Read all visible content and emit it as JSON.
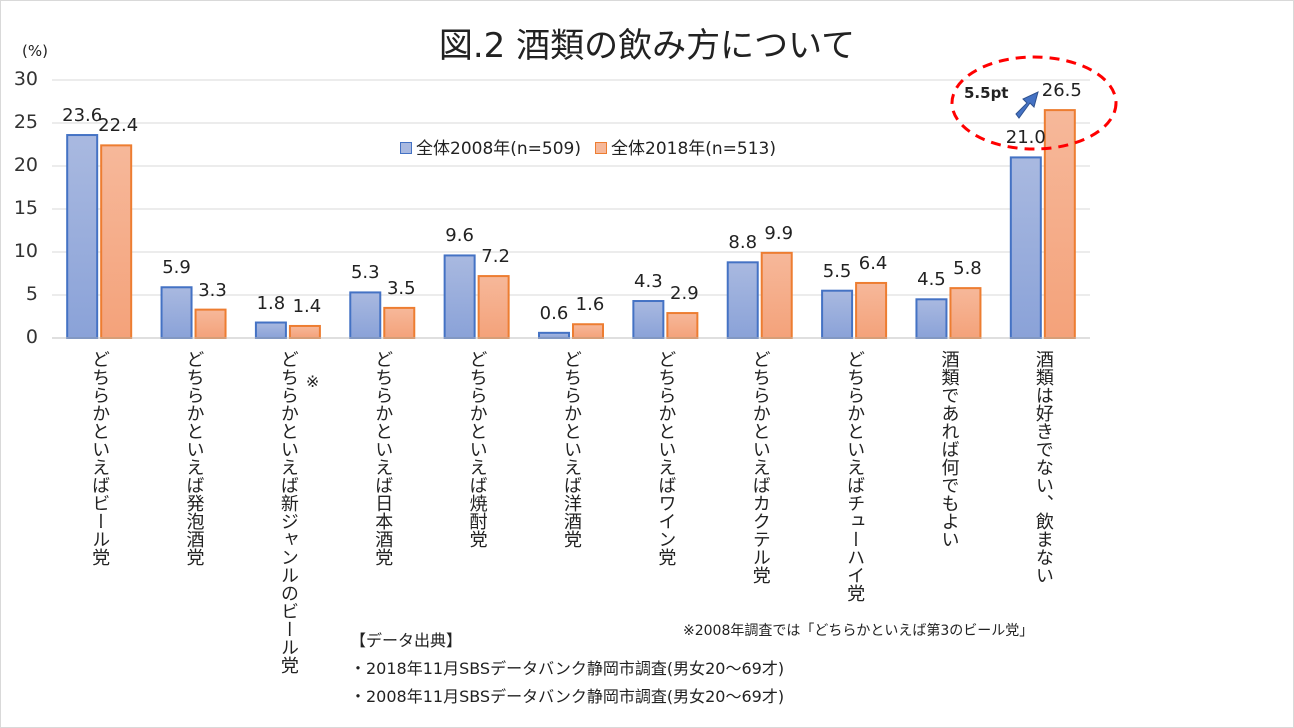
{
  "chart_data": {
    "type": "bar",
    "title": "図.2  酒類の飲み方について",
    "ylabel": "(%)",
    "ylim": [
      0,
      30
    ],
    "yticks": [
      "0",
      "5",
      "10",
      "15",
      "20",
      "25",
      "30"
    ],
    "grid": true,
    "legend_position": "top-center",
    "categories": [
      "どちらかといえばビール党",
      "どちらかといえば発泡酒党",
      "どちらかといえば新ジャンルのビール党",
      "どちらかといえば日本酒党",
      "どちらかといえば焼酎党",
      "どちらかといえば洋酒党",
      "どちらかといえばワイン党",
      "どちらかといえばカクテル党",
      "どちらかといえばチューハイ党",
      "酒類であれば何でもよい",
      "酒類は好きでない、飲まない"
    ],
    "category_marks": [
      "",
      "",
      "※",
      "",
      "",
      "",
      "",
      "",
      "",
      "",
      ""
    ],
    "series": [
      {
        "name": "全体2008年(n=509)",
        "values": [
          23.6,
          5.9,
          1.8,
          5.3,
          9.6,
          0.6,
          4.3,
          8.8,
          5.5,
          4.5,
          21.0
        ],
        "labels": [
          "23.6",
          "5.9",
          "1.8",
          "5.3",
          "9.6",
          "0.6",
          "4.3",
          "8.8",
          "5.5",
          "4.5",
          "21.0"
        ],
        "color": "#4472c4",
        "fill": "#a9b9e0"
      },
      {
        "name": "全体2018年(n=513)",
        "values": [
          22.4,
          3.3,
          1.4,
          3.5,
          7.2,
          1.6,
          2.9,
          9.9,
          6.4,
          5.8,
          26.5
        ],
        "labels": [
          "22.4",
          "3.3",
          "1.4",
          "3.5",
          "7.2",
          "1.6",
          "2.9",
          "9.9",
          "6.4",
          "5.8",
          "26.5"
        ],
        "color": "#ed7d31",
        "fill": "#f6b89a"
      }
    ],
    "annotation": {
      "text": "5.5pt",
      "highlight_color": "#ff0000",
      "arrow_color": "#4472c4"
    }
  },
  "notes": {
    "footnote": "※2008年調査では「どちらかといえば第3のビール党」",
    "source_heading": "【データ出典】",
    "sources": [
      "・2018年11月SBSデータバンク静岡市調査(男女20～69才)",
      "・2008年11月SBSデータバンク静岡市調査(男女20～69才)"
    ]
  }
}
